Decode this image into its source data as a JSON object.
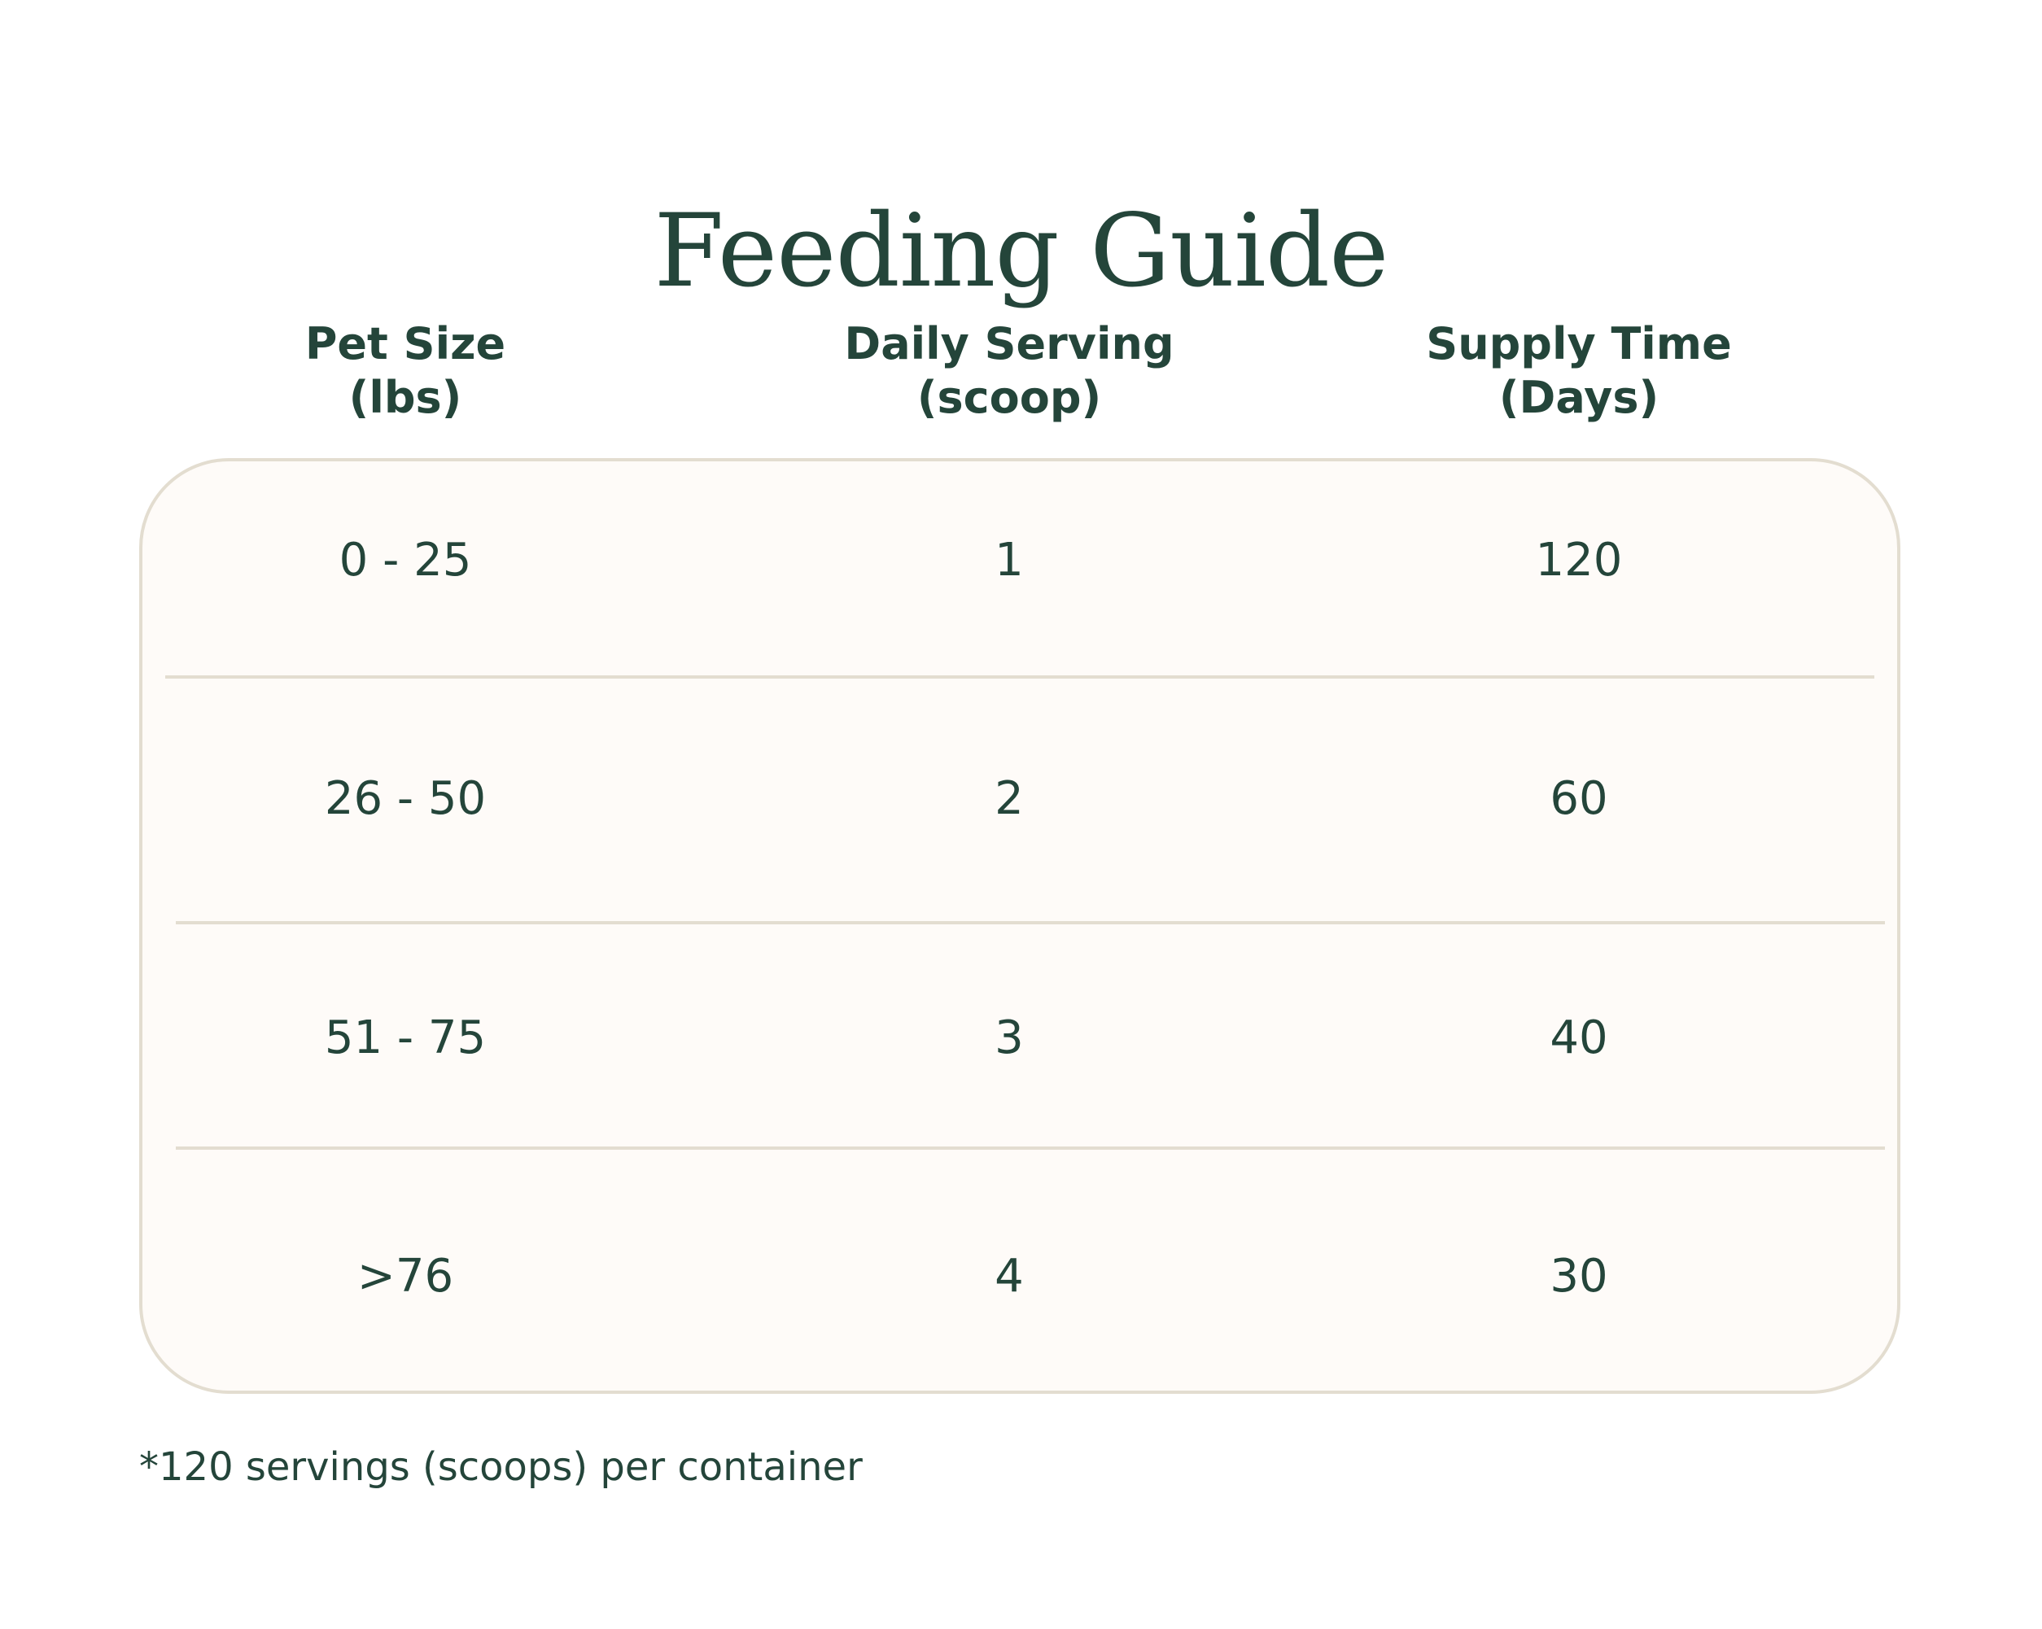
{
  "title": "Feeding Guide",
  "columns": [
    {
      "line1": "Pet Size",
      "line2": "(lbs)"
    },
    {
      "line1": "Daily Serving",
      "line2": "(scoop)"
    },
    {
      "line1": "Supply Time",
      "line2": "(Days)"
    }
  ],
  "rows": [
    {
      "pet_size": "0 - 25",
      "daily_serving": "1",
      "supply_time": "120"
    },
    {
      "pet_size": "26 - 50",
      "daily_serving": "2",
      "supply_time": "60"
    },
    {
      "pet_size": "51 - 75",
      "daily_serving": "3",
      "supply_time": "40"
    },
    {
      "pet_size": ">76",
      "daily_serving": "4",
      "supply_time": "30"
    }
  ],
  "footnote": "*120 servings (scoops) per container"
}
